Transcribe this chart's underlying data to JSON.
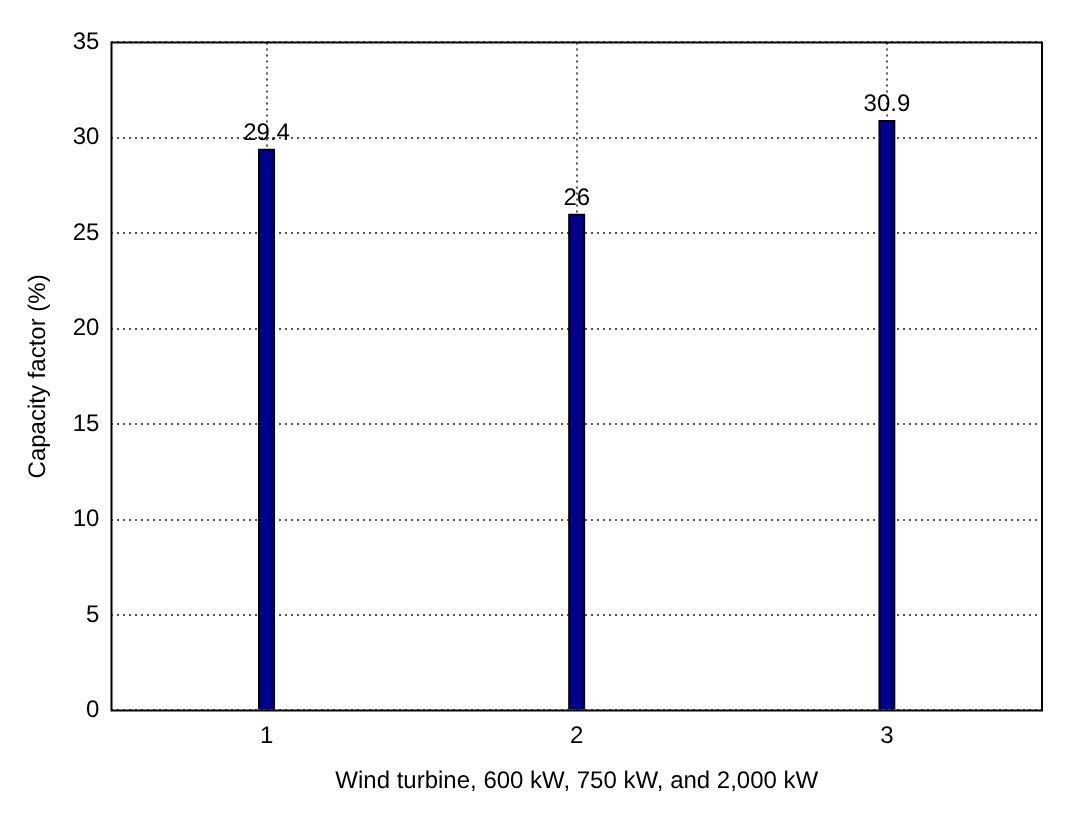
{
  "chart_data": {
    "type": "bar",
    "xlabel": "Wind turbine, 600 kW, 750 kW, and 2,000 kW",
    "ylabel": "Capacity factor (%)",
    "categories": [
      "1",
      "2",
      "3"
    ],
    "values": [
      29.4,
      26,
      30.9
    ],
    "color": "#00008b",
    "ylim": [
      0,
      35
    ],
    "yticks": [
      0,
      5,
      10,
      15,
      20,
      25,
      30,
      35
    ],
    "grid": true,
    "data_labels": true
  }
}
